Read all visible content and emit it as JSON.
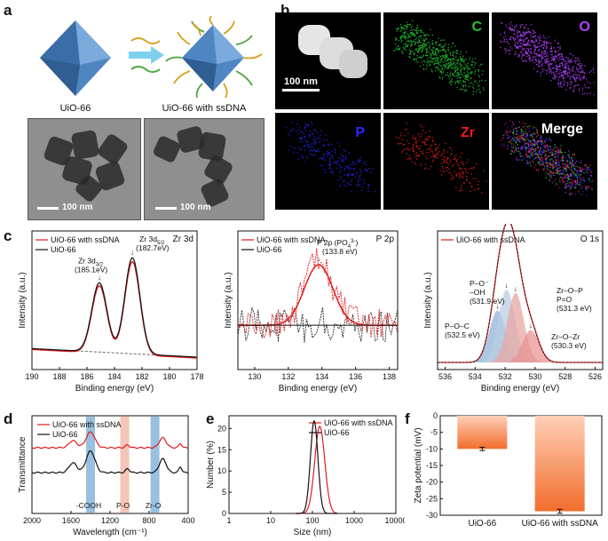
{
  "panels": {
    "a": "a",
    "b": "b",
    "c": "c",
    "d": "d",
    "e": "e",
    "f": "f"
  },
  "panel_a": {
    "label_left": "UiO-66",
    "label_right": "UiO-66 with ssDNA",
    "scale_left": "100 nm",
    "scale_right": "100 nm"
  },
  "panel_b": {
    "scale": "100 nm",
    "maps": [
      "C",
      "O",
      "P",
      "Zr",
      "Merge"
    ],
    "colors": {
      "C": "#22c233",
      "O": "#b040ff",
      "P": "#2828ff",
      "Zr": "#ee1c1c"
    }
  },
  "legend": {
    "dna": "UiO-66 with ssDNA",
    "plain": "UiO-66"
  },
  "colors": {
    "dna": "#e41a1c",
    "plain": "#111111"
  },
  "chart_data": [
    {
      "id": "c1",
      "type": "line",
      "title": "Zr 3d",
      "xlabel": "Binding energy (eV)",
      "ylabel": "Intensity (a.u.)",
      "xlim": [
        190,
        178
      ],
      "xticks": [
        190,
        188,
        186,
        184,
        182,
        180,
        178
      ],
      "peaks": [
        {
          "x": 185.1,
          "label1": "Zr 3d",
          "sub": "3/2",
          "label2": "(185.1eV)"
        },
        {
          "x": 182.7,
          "label1": "Zr 3d",
          "sub": "5/2",
          "label2": "(182.7eV)"
        }
      ],
      "series": [
        {
          "name": "UiO-66 with ssDNA"
        },
        {
          "name": "UiO-66"
        }
      ]
    },
    {
      "id": "c2",
      "type": "line",
      "title": "P 2p",
      "xlabel": "Binding energy (eV)",
      "ylabel": "Intensity (a.u.)",
      "xlim": [
        129,
        138.5
      ],
      "xticks": [
        130,
        132,
        134,
        136,
        138
      ],
      "peaks": [
        {
          "x": 133.8,
          "label1": "P 2p (PO",
          "sup": "3-",
          "sub": "4",
          "label2": "(133.8 eV)"
        }
      ],
      "series": [
        {
          "name": "UiO-66 with ssDNA"
        },
        {
          "name": "UiO-66"
        }
      ]
    },
    {
      "id": "c3",
      "type": "area",
      "title": "O 1s",
      "xlabel": "Binding energy (eV)",
      "ylabel": "Intensity (a.u.)",
      "xlim": [
        536.5,
        525.5
      ],
      "xticks": [
        536,
        534,
        532,
        530,
        528,
        526
      ],
      "components": [
        {
          "name": "P–O–C",
          "center": 532.5,
          "height": 0.45,
          "color": "#8fb3d6",
          "text": [
            "P–O–C",
            "(532.5 eV)"
          ]
        },
        {
          "name": "P–O⁻ –OH",
          "center": 531.9,
          "height": 0.63,
          "color": "#b9cde4",
          "text": [
            "P–O⁻",
            "–OH",
            "(531.9 eV)"
          ]
        },
        {
          "name": "Zr–O–P P=O",
          "center": 531.3,
          "height": 0.6,
          "color": "#e7a7a1",
          "text": [
            "Zr–O–P",
            "P=O",
            "(531.3 eV)"
          ]
        },
        {
          "name": "Zr–O–Zr",
          "center": 530.3,
          "height": 0.28,
          "color": "#e79494",
          "text": [
            "Zr–O–Zr",
            "(530.3 eV)"
          ]
        }
      ],
      "series": [
        {
          "name": "UiO-66 with ssDNA"
        }
      ]
    },
    {
      "id": "d",
      "type": "line",
      "xlabel": "Wavelength (cm⁻¹)",
      "ylabel": "Transmittance",
      "xlim": [
        2000,
        400
      ],
      "xticks": [
        2000,
        1600,
        1200,
        800,
        400
      ],
      "bands": [
        {
          "x": 1400,
          "label": "-COOH",
          "color": "#7fb0d8"
        },
        {
          "x": 1050,
          "label": "P-O",
          "color": "#f3b7a2"
        },
        {
          "x": 740,
          "label": "Zr-O",
          "color": "#7fb0d8"
        }
      ],
      "series": [
        {
          "name": "UiO-66 with ssDNA"
        },
        {
          "name": "UiO-66"
        }
      ]
    },
    {
      "id": "e",
      "type": "line",
      "xlabel": "Size (nm)",
      "ylabel": "Number (%)",
      "xscale": "log",
      "xlim": [
        1,
        10000
      ],
      "xticks": [
        1,
        10,
        100,
        1000,
        10000
      ],
      "ylim": [
        0,
        23
      ],
      "yticks": [
        0,
        5,
        10,
        15,
        20
      ],
      "series": [
        {
          "name": "UiO-66 with ssDNA",
          "peak_x": 150,
          "peak_y": 20.5
        },
        {
          "name": "UiO-66",
          "peak_x": 110,
          "peak_y": 21.8
        }
      ]
    },
    {
      "id": "f",
      "type": "bar",
      "categories": [
        "UiO-66",
        "UiO-66 with ssDNA"
      ],
      "values": [
        -10.0,
        -28.8
      ],
      "errors": [
        0.5,
        0.6
      ],
      "ylabel": "Zeta potential (mV)",
      "ylim": [
        -30,
        0
      ],
      "yticks": [
        0,
        -5,
        -10,
        -15,
        -20,
        -25,
        -30
      ]
    }
  ]
}
